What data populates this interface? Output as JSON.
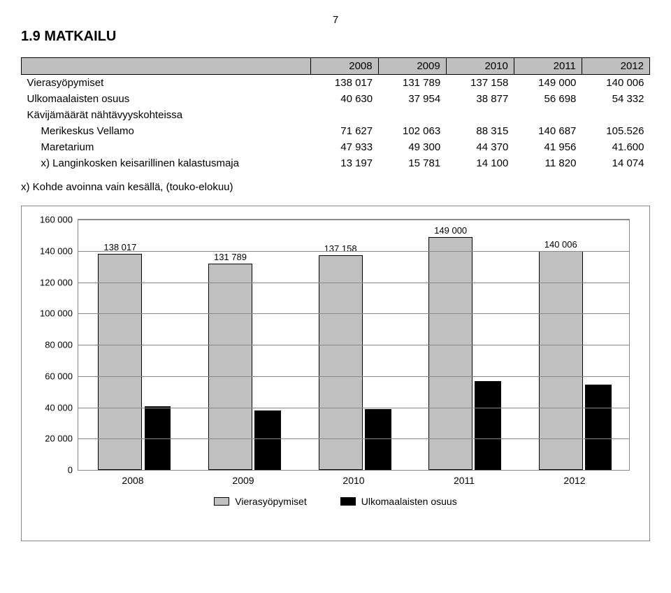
{
  "page_number": "7",
  "heading": "1.9  MATKAILU",
  "table": {
    "columns": [
      "",
      "2008",
      "2009",
      "2010",
      "2011",
      "2012"
    ],
    "rows": [
      {
        "label": "Vierasyöpymiset",
        "vals": [
          "138 017",
          "131 789",
          "137 158",
          "149 000",
          "140 006"
        ],
        "indent": false
      },
      {
        "label": "Ulkomaalaisten osuus",
        "vals": [
          "40 630",
          "37 954",
          "38 877",
          "56 698",
          "54 332"
        ],
        "indent": false
      },
      {
        "label": "Kävijämäärät nähtävyyskohteissa",
        "vals": [
          "",
          "",
          "",
          "",
          ""
        ],
        "indent": false
      },
      {
        "label": "Merikeskus Vellamo",
        "vals": [
          "71 627",
          "102 063",
          "88 315",
          "140 687",
          "105.526"
        ],
        "indent": true
      },
      {
        "label": "Maretarium",
        "vals": [
          "47 933",
          "49 300",
          "44 370",
          "41 956",
          "41.600"
        ],
        "indent": true
      },
      {
        "label": "x) Langinkosken keisarillinen kalastusmaja",
        "vals": [
          "13 197",
          "15 781",
          "14 100",
          "11 820",
          "14 074"
        ],
        "indent": true
      }
    ]
  },
  "footnote": "x) Kohde avoinna vain kesällä, (touko-elokuu)",
  "chart": {
    "type": "bar",
    "ymax": 160000,
    "ytick_step": 20000,
    "yticks": [
      "0",
      "20 000",
      "40 000",
      "60 000",
      "80 000",
      "100 000",
      "120 000",
      "140 000",
      "160 000"
    ],
    "categories": [
      "2008",
      "2009",
      "2010",
      "2011",
      "2012"
    ],
    "series": [
      {
        "name": "Vierasyöpymiset",
        "color": "#c0c0c0",
        "border": "#000000",
        "values": [
          138017,
          131789,
          137158,
          149000,
          140006
        ],
        "labels": [
          "138 017",
          "131 789",
          "137 158",
          "149 000",
          "140 006"
        ],
        "show_labels": true
      },
      {
        "name": "Ulkomaalaisten osuus",
        "color": "#000000",
        "border": "#000000",
        "values": [
          40630,
          37954,
          38877,
          56698,
          54332
        ],
        "labels": [
          "40 630",
          "37 954",
          "38 877",
          "56 698",
          "54 332"
        ],
        "show_labels": false
      }
    ],
    "background_color": "#ffffff",
    "grid_color": "#888888",
    "font_size_labels": 13,
    "font_size_axis": 14
  }
}
